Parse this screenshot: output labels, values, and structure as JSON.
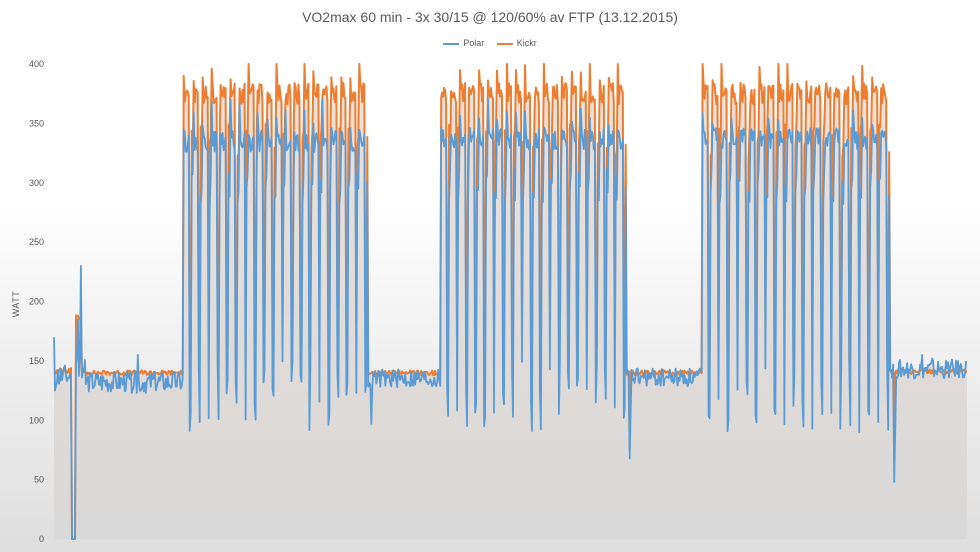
{
  "chart_data": {
    "type": "line",
    "title": "VO2max 60 min - 3x 30/15 @ 120/60% av FTP (13.12.2015)",
    "ylabel": "WATT",
    "xlabel": "",
    "ylim": [
      0,
      400
    ],
    "yticks": [
      0,
      50,
      100,
      150,
      200,
      250,
      300,
      350,
      400
    ],
    "grid": false,
    "legend_position": "top",
    "series": [
      {
        "name": "Polar",
        "color": "#5b9bd5",
        "segments": [
          {
            "type": "steady",
            "from": 0,
            "to": 18,
            "level": 137,
            "noise": 10,
            "seed": 11
          },
          {
            "type": "steady",
            "from": 18,
            "to": 22,
            "level": 0,
            "noise": 0,
            "seed": 12
          },
          {
            "type": "steady",
            "from": 22,
            "to": 32,
            "level": 145,
            "noise": 10,
            "seed": 13
          },
          {
            "type": "steady",
            "from": 32,
            "to": 130,
            "level": 132,
            "noise": 9,
            "seed": 14
          },
          {
            "type": "intervals",
            "from": 130,
            "to": 315,
            "high": 335,
            "low": 140,
            "count": 20,
            "seed": 15
          },
          {
            "type": "steady",
            "from": 315,
            "to": 388,
            "level": 135,
            "noise": 8,
            "seed": 16
          },
          {
            "type": "intervals",
            "from": 388,
            "to": 574,
            "high": 337,
            "low": 140,
            "count": 20,
            "seed": 17
          },
          {
            "type": "steady",
            "from": 574,
            "to": 650,
            "level": 136,
            "noise": 8,
            "seed": 18
          },
          {
            "type": "intervals",
            "from": 650,
            "to": 838,
            "high": 337,
            "low": 140,
            "count": 20,
            "seed": 19
          },
          {
            "type": "steady",
            "from": 838,
            "to": 915,
            "level": 143,
            "noise": 8,
            "seed": 20
          }
        ],
        "spikes": [
          [
            0,
            170
          ],
          [
            1,
            125
          ],
          [
            24,
            185
          ],
          [
            27,
            230
          ],
          [
            84,
            155
          ],
          [
            86,
            125
          ],
          [
            318,
            97
          ],
          [
            577,
            68
          ],
          [
            578,
            110
          ],
          [
            842,
            48
          ],
          [
            843,
            90
          ],
          [
            870,
            155
          ],
          [
            880,
            152
          ]
        ]
      },
      {
        "name": "Kickr",
        "color": "#ed7d31",
        "segments": [
          {
            "type": "steady",
            "from": 0,
            "to": 18,
            "level": 141,
            "noise": 3,
            "seed": 21
          },
          {
            "type": "steady",
            "from": 18,
            "to": 22,
            "level": 0,
            "noise": 0,
            "seed": 22
          },
          {
            "type": "steady",
            "from": 22,
            "to": 28,
            "level": 185,
            "noise": 4,
            "seed": 23
          },
          {
            "type": "steady",
            "from": 28,
            "to": 130,
            "level": 140,
            "noise": 2,
            "seed": 24
          },
          {
            "type": "intervals",
            "from": 130,
            "to": 315,
            "high": 375,
            "low": 200,
            "count": 20,
            "seed": 25
          },
          {
            "type": "steady",
            "from": 315,
            "to": 388,
            "level": 140,
            "noise": 2,
            "seed": 26
          },
          {
            "type": "intervals",
            "from": 388,
            "to": 574,
            "high": 375,
            "low": 200,
            "count": 20,
            "seed": 27
          },
          {
            "type": "steady",
            "from": 574,
            "to": 650,
            "level": 140,
            "noise": 2,
            "seed": 28
          },
          {
            "type": "intervals",
            "from": 650,
            "to": 838,
            "high": 375,
            "low": 200,
            "count": 20,
            "seed": 29
          },
          {
            "type": "steady",
            "from": 838,
            "to": 915,
            "level": 141,
            "noise": 2,
            "seed": 30
          }
        ],
        "spikes": [
          [
            24,
            188
          ],
          [
            577,
            75
          ],
          [
            842,
            65
          ]
        ]
      }
    ],
    "x_range": [
      0,
      915
    ]
  }
}
